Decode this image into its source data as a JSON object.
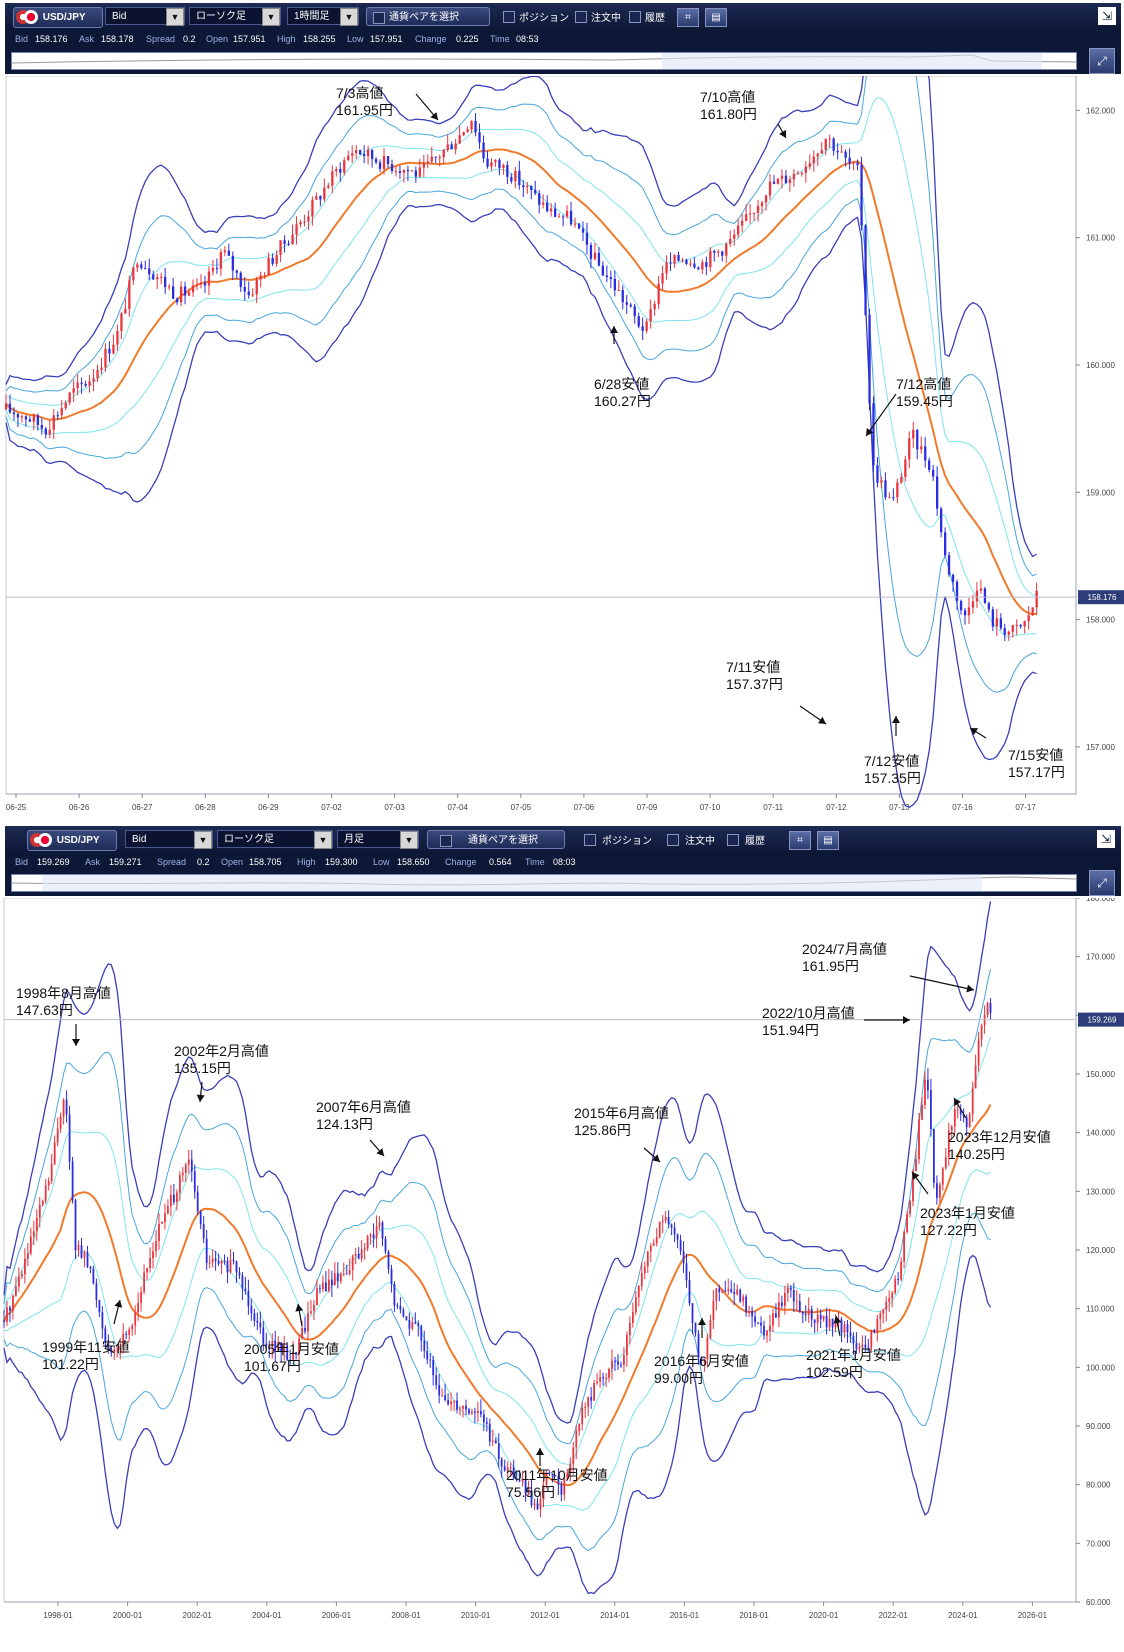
{
  "top": {
    "toolbar": {
      "pair": "USD/JPY",
      "price_type": "Bid",
      "chart_type": "ローソク足",
      "timeframe": "1時間足",
      "select_pair": "通貨ペアを選択",
      "positions": "ポジション",
      "orders": "注文中",
      "history": "履歴"
    },
    "quote": {
      "bid_label": "Bid",
      "bid": "158.176",
      "ask_label": "Ask",
      "ask": "158.178",
      "spread_label": "Spread",
      "spread": "0.2",
      "open_label": "Open",
      "open": "157.951",
      "high_label": "High",
      "high": "158.255",
      "low_label": "Low",
      "low": "157.951",
      "change_label": "Change",
      "change": "0.225",
      "time_label": "Time",
      "time": "08:53"
    },
    "current_price_tag": "158.176"
  },
  "bottom": {
    "toolbar": {
      "pair": "USD/JPY",
      "price_type": "Bid",
      "chart_type": "ローソク足",
      "timeframe": "月足",
      "select_pair": "通貨ペアを選択",
      "positions": "ポジション",
      "orders": "注文中",
      "history": "履歴"
    },
    "quote": {
      "bid_label": "Bid",
      "bid": "159.269",
      "ask_label": "Ask",
      "ask": "159.271",
      "spread_label": "Spread",
      "spread": "0.2",
      "open_label": "Open",
      "open": "158.705",
      "high_label": "High",
      "high": "159.300",
      "low_label": "Low",
      "low": "158.650",
      "change_label": "Change",
      "change": "0.564",
      "time_label": "Time",
      "time": "08:03"
    },
    "current_price_tag": "159.269"
  },
  "colors": {
    "candle_up": "#e8353f",
    "candle_down": "#2b2de0",
    "ma": "#f07a2a",
    "band1": "#7fe4ec",
    "band2": "#4aa6dc",
    "band3": "#3a3fb8",
    "toolbar": "#0d1736"
  },
  "chart_data": [
    {
      "type": "candlestick",
      "timeframe": "1時間足",
      "x_ticks": [
        "06-25",
        "06-26",
        "06-27",
        "06-28",
        "06-29",
        "07-02",
        "07-03",
        "07-04",
        "07-05",
        "07-06",
        "07-09",
        "07-10",
        "07-11",
        "07-12",
        "07-13",
        "07-16",
        "07-17"
      ],
      "y_ticks": [
        "157.000",
        "158.000",
        "159.000",
        "160.000",
        "161.000",
        "162.000"
      ],
      "ylim": [
        156.63,
        162.27
      ],
      "last_price": 158.176,
      "close_path": [
        [
          0,
          159.65
        ],
        [
          0.3,
          159.6
        ],
        [
          0.6,
          159.5
        ],
        [
          1,
          159.78
        ],
        [
          1.3,
          159.9
        ],
        [
          1.7,
          160.25
        ],
        [
          2,
          160.85
        ],
        [
          2.3,
          160.7
        ],
        [
          2.6,
          160.55
        ],
        [
          3,
          160.6
        ],
        [
          3.3,
          160.9
        ],
        [
          3.7,
          160.55
        ],
        [
          4,
          160.8
        ],
        [
          4.3,
          161.0
        ],
        [
          4.6,
          161.2
        ],
        [
          5,
          161.5
        ],
        [
          5.3,
          161.7
        ],
        [
          5.7,
          161.6
        ],
        [
          6,
          161.55
        ],
        [
          6.3,
          161.5
        ],
        [
          6.6,
          161.65
        ],
        [
          6.9,
          161.8
        ],
        [
          7.1,
          161.95
        ],
        [
          7.3,
          161.6
        ],
        [
          7.6,
          161.55
        ],
        [
          8,
          161.35
        ],
        [
          8.3,
          161.2
        ],
        [
          8.6,
          161.15
        ],
        [
          9,
          160.8
        ],
        [
          9.3,
          160.6
        ],
        [
          9.6,
          160.35
        ],
        [
          9.75,
          160.27
        ],
        [
          10,
          160.75
        ],
        [
          10.3,
          160.85
        ],
        [
          10.6,
          160.8
        ],
        [
          11,
          160.95
        ],
        [
          11.3,
          161.15
        ],
        [
          11.6,
          161.4
        ],
        [
          12,
          161.5
        ],
        [
          12.3,
          161.65
        ],
        [
          12.5,
          161.8
        ],
        [
          12.8,
          161.6
        ],
        [
          13,
          161.5
        ],
        [
          13.2,
          159.2
        ],
        [
          13.5,
          158.9
        ],
        [
          13.8,
          159.45
        ],
        [
          14.1,
          159.2
        ],
        [
          14.3,
          158.5
        ],
        [
          14.6,
          158.0
        ],
        [
          14.8,
          158.3
        ],
        [
          15.0,
          158.0
        ],
        [
          15.3,
          157.9
        ],
        [
          15.5,
          157.95
        ],
        [
          15.7,
          158.18
        ]
      ],
      "annotations": [
        {
          "label": "7/3高値",
          "price": "161.95円"
        },
        {
          "label": "7/10高値",
          "price": "161.80円"
        },
        {
          "label": "6/28安値",
          "price": "160.27円"
        },
        {
          "label": "7/12高値",
          "price": "159.45円"
        },
        {
          "label": "7/11安値",
          "price": "157.37円"
        },
        {
          "label": "7/12安値",
          "price": "157.35円"
        },
        {
          "label": "7/15安値",
          "price": "157.17円"
        }
      ]
    },
    {
      "type": "candlestick",
      "timeframe": "月足",
      "x_ticks": [
        "1998-01",
        "2000-01",
        "2002-01",
        "2004-01",
        "2006-01",
        "2008-01",
        "2010-01",
        "2012-01",
        "2014-01",
        "2016-01",
        "2018-01",
        "2020-01",
        "2022-01",
        "2024-01",
        "2026-01"
      ],
      "y_ticks": [
        "60.000",
        "70.000",
        "80.000",
        "90.000",
        "100.000",
        "110.000",
        "120.000",
        "130.000",
        "140.000",
        "150.000",
        "160.000",
        "170.000",
        "180.000"
      ],
      "ylim": [
        60,
        180
      ],
      "last_price": 159.269,
      "close_path": [
        [
          1996.9,
          108
        ],
        [
          1997.6,
          120
        ],
        [
          1998.2,
          133
        ],
        [
          1998.6,
          147.6
        ],
        [
          1998.9,
          121
        ],
        [
          1999.3,
          117
        ],
        [
          1999.9,
          101.2
        ],
        [
          2000.5,
          108
        ],
        [
          2001.2,
          123
        ],
        [
          2002.1,
          135.15
        ],
        [
          2002.6,
          118
        ],
        [
          2003.4,
          117
        ],
        [
          2004.2,
          105
        ],
        [
          2005.0,
          101.67
        ],
        [
          2005.7,
          113
        ],
        [
          2006.4,
          116
        ],
        [
          2007.1,
          121
        ],
        [
          2007.45,
          124.13
        ],
        [
          2007.9,
          110
        ],
        [
          2008.6,
          106
        ],
        [
          2009.1,
          95
        ],
        [
          2009.6,
          94
        ],
        [
          2010.3,
          92
        ],
        [
          2010.9,
          83
        ],
        [
          2011.4,
          81
        ],
        [
          2011.8,
          75.56
        ],
        [
          2012.2,
          82
        ],
        [
          2012.6,
          79
        ],
        [
          2013.1,
          92
        ],
        [
          2013.6,
          98
        ],
        [
          2014.3,
          102
        ],
        [
          2014.9,
          118
        ],
        [
          2015.45,
          125.86
        ],
        [
          2016.0,
          118
        ],
        [
          2016.45,
          99.0
        ],
        [
          2016.9,
          113
        ],
        [
          2017.6,
          112
        ],
        [
          2018.2,
          106
        ],
        [
          2018.9,
          113
        ],
        [
          2019.6,
          108
        ],
        [
          2020.2,
          108
        ],
        [
          2021.05,
          102.59
        ],
        [
          2021.6,
          110
        ],
        [
          2022.0,
          115
        ],
        [
          2022.4,
          131
        ],
        [
          2022.8,
          151.94
        ],
        [
          2023.05,
          127.22
        ],
        [
          2023.6,
          145
        ],
        [
          2023.95,
          140.25
        ],
        [
          2024.3,
          157
        ],
        [
          2024.5,
          161.95
        ],
        [
          2024.6,
          159.27
        ]
      ],
      "annotations": [
        {
          "label": "1998年8月高値",
          "price": "147.63円"
        },
        {
          "label": "2002年2月高値",
          "price": "135.15円"
        },
        {
          "label": "2007年6月高値",
          "price": "124.13円"
        },
        {
          "label": "2015年6月高値",
          "price": "125.86円"
        },
        {
          "label": "2024/7月高値",
          "price": "161.95円"
        },
        {
          "label": "2022/10月高値",
          "price": "151.94円"
        },
        {
          "label": "2023年12月安値",
          "price": "140.25円"
        },
        {
          "label": "2023年1月安値",
          "price": "127.22円"
        },
        {
          "label": "1999年11安値",
          "price": "101.22円"
        },
        {
          "label": "2005年1月安値",
          "price": "101.67円"
        },
        {
          "label": "2016年6月安値",
          "price": "99.00円"
        },
        {
          "label": "2021年1月安値",
          "price": "102.59円"
        },
        {
          "label": "2011年10月安値",
          "price": "75.56円"
        }
      ]
    }
  ]
}
